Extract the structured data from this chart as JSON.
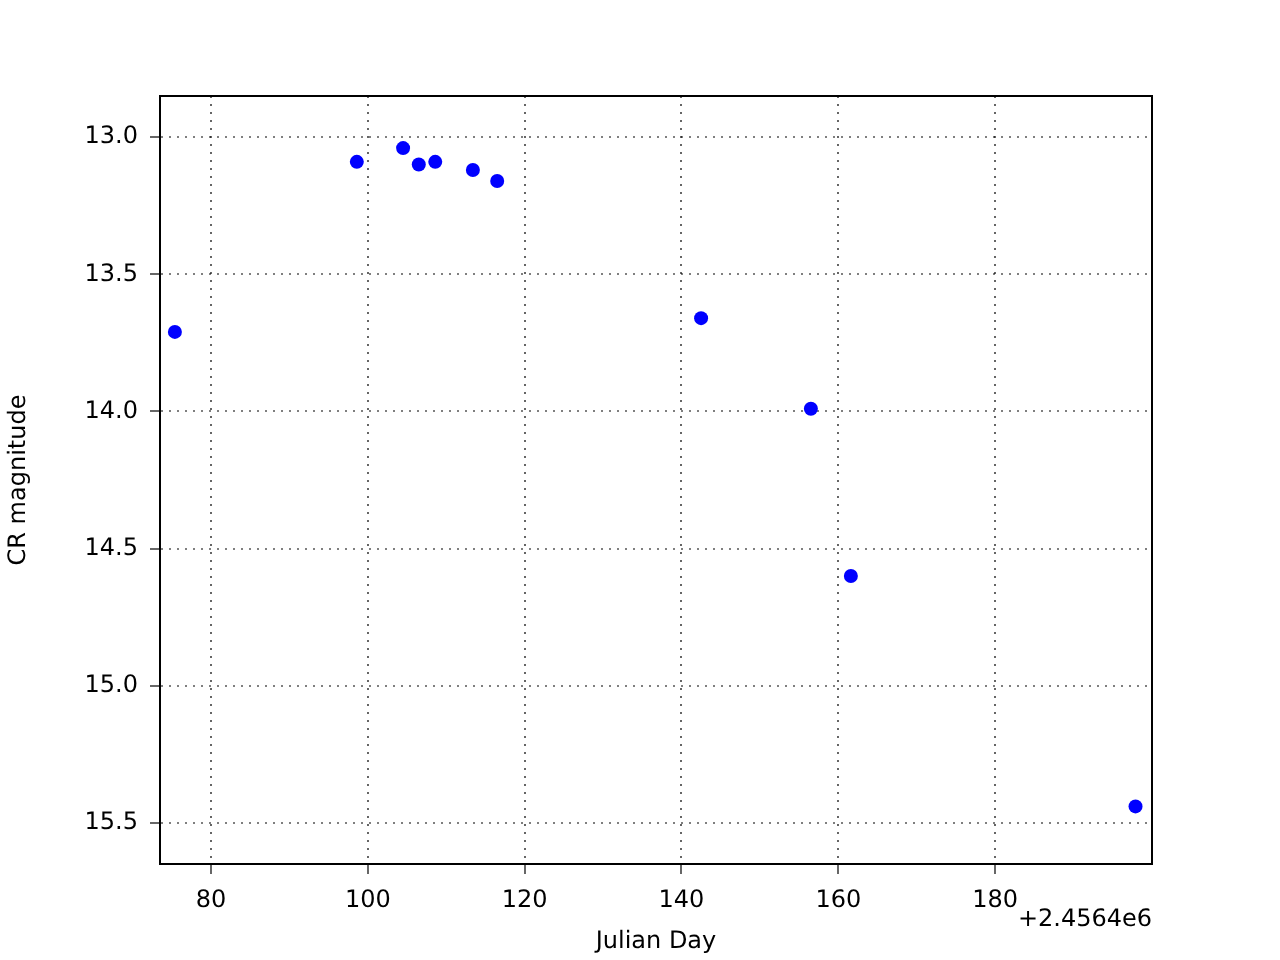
{
  "chart_data": {
    "type": "scatter",
    "xlabel": "Julian Day",
    "ylabel": "CR magnitude",
    "annotations": [
      "+2.4564e6"
    ],
    "x": [
      75.4,
      98.6,
      104.5,
      106.5,
      108.6,
      113.4,
      116.5,
      142.5,
      156.5,
      161.6,
      197.9
    ],
    "series": [
      {
        "color": "#0000ff",
        "values": [
          13.71,
          13.09,
          13.04,
          13.1,
          13.09,
          13.12,
          13.16,
          13.66,
          13.99,
          14.6,
          15.44
        ]
      }
    ],
    "xlim": [
      73.5,
      200
    ],
    "xticks": [
      80,
      100,
      120,
      140,
      160,
      180
    ],
    "ylim": [
      15.65,
      12.85
    ],
    "yticks": [
      {
        "value": 13,
        "label": "13.0"
      },
      {
        "value": 13.5,
        "label": "13.5"
      },
      {
        "value": 14,
        "label": "14.0"
      },
      {
        "value": 14.5,
        "label": "14.5"
      },
      {
        "value": 15,
        "label": "15.0"
      },
      {
        "value": 15.5,
        "label": "15.5"
      }
    ],
    "grid": true,
    "marker": "circle",
    "legend": false
  }
}
